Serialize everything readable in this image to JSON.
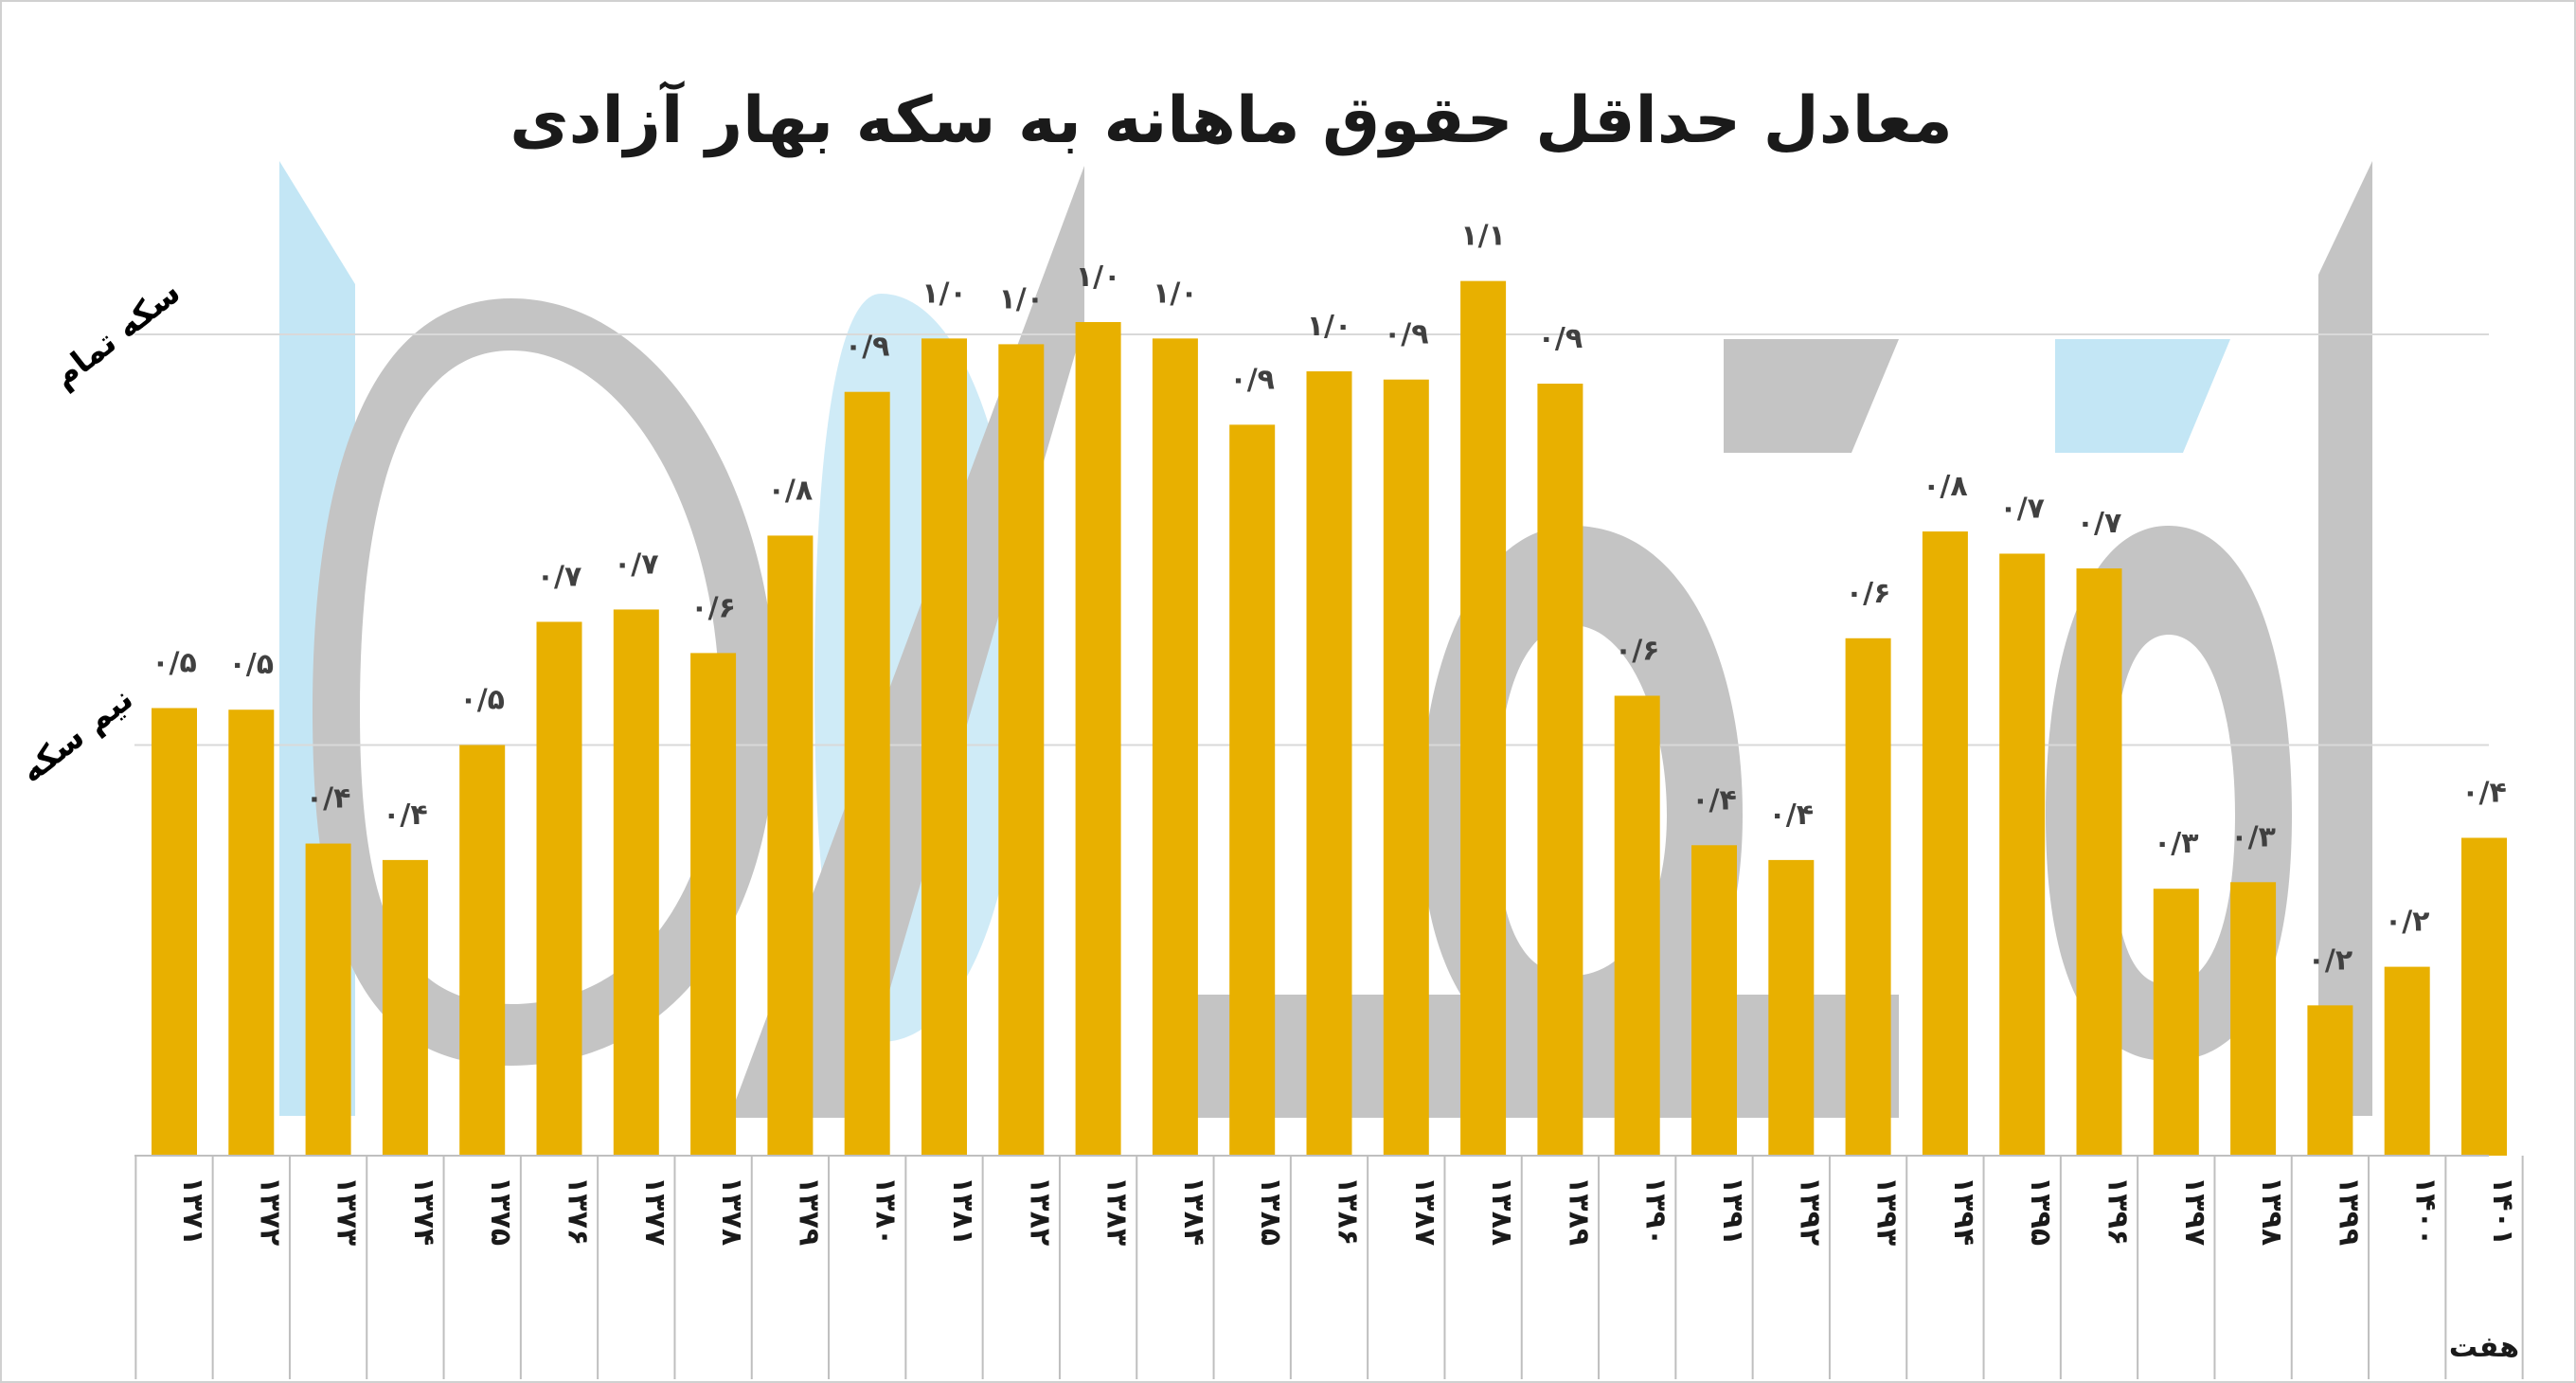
{
  "chart_data": {
    "type": "bar",
    "title": "معادل حداقل حقوق ماهانه به سکه بهار آزادی",
    "categories": [
      "۱۳۷۱",
      "۱۳۷۲",
      "۱۳۷۳",
      "۱۳۷۴",
      "۱۳۷۵",
      "۱۳۷۶",
      "۱۳۷۷",
      "۱۳۷۸",
      "۱۳۷۹",
      "۱۳۸۰",
      "۱۳۸۱",
      "۱۳۸۲",
      "۱۳۸۳",
      "۱۳۸۴",
      "۱۳۸۵",
      "۱۳۸۶",
      "۱۳۸۷",
      "۱۳۸۸",
      "۱۳۸۹",
      "۱۳۹۰",
      "۱۳۹۱",
      "۱۳۹۲",
      "۱۳۹۳",
      "۱۳۹۴",
      "۱۳۹۵",
      "۱۳۹۶",
      "۱۳۹۷",
      "۱۳۹۸",
      "۱۳۹۹",
      "۱۴۰۰",
      "۱۴۰۱"
    ],
    "values": [
      0.545,
      0.543,
      0.38,
      0.36,
      0.5,
      0.65,
      0.665,
      0.612,
      0.755,
      0.93,
      0.995,
      0.988,
      1.015,
      0.995,
      0.89,
      0.955,
      0.945,
      1.065,
      0.94,
      0.56,
      0.378,
      0.36,
      0.63,
      0.76,
      0.733,
      0.715,
      0.325,
      0.333,
      0.183,
      0.23,
      0.387
    ],
    "data_labels": [
      "۰/۵",
      "۰/۵",
      "۰/۴",
      "۰/۴",
      "۰/۵",
      "۰/۷",
      "۰/۷",
      "۰/۶",
      "۰/۸",
      "۰/۹",
      "۱/۰",
      "۱/۰",
      "۱/۰",
      "۱/۰",
      "۰/۹",
      "۱/۰",
      "۰/۹",
      "۱/۱",
      "۰/۹",
      "۰/۶",
      "۰/۴",
      "۰/۴",
      "۰/۶",
      "۰/۸",
      "۰/۷",
      "۰/۷",
      "۰/۳",
      "۰/۳",
      "۰/۲",
      "۰/۲",
      "۰/۴"
    ],
    "reference_lines": [
      {
        "value": 0.5,
        "label": "نیم سکه"
      },
      {
        "value": 1.0,
        "label": "سکه تمام"
      }
    ],
    "last_category_note": "هفت",
    "ylim": [
      0,
      1.2
    ],
    "grid": true,
    "colors": {
      "bar": "#E8B000",
      "gridline": "#d9d9d9",
      "watermark_gray": "#c4c4c4",
      "watermark_blue": "#c3e6f5"
    }
  }
}
